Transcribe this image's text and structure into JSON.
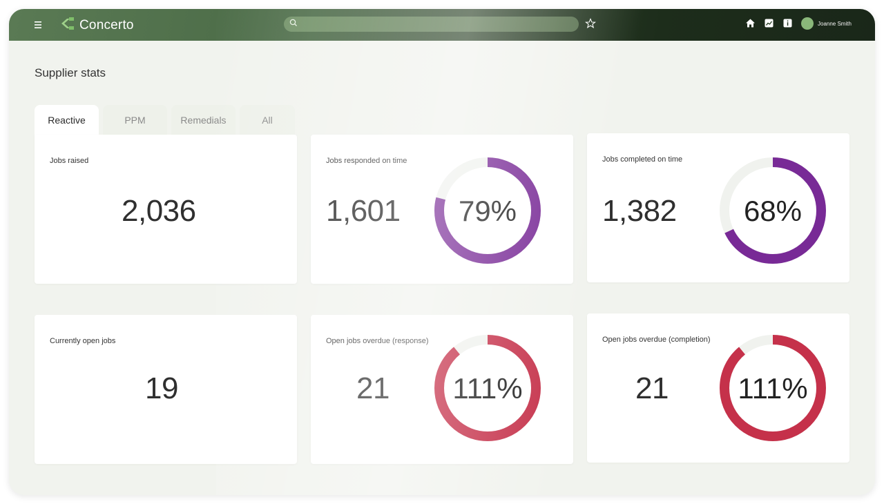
{
  "app": {
    "name": "Concerto",
    "search_placeholder": "",
    "user_name": "Joanne Smith",
    "brand_color": "#4a6a46"
  },
  "page": {
    "title": "Supplier stats"
  },
  "tabs": [
    {
      "label": "Reactive",
      "active": true
    },
    {
      "label": "PPM",
      "active": false
    },
    {
      "label": "Remedials",
      "active": false
    },
    {
      "label": "All",
      "active": false
    }
  ],
  "icons": {
    "menu": "hamburger-menu-icon",
    "logo": "concerto-logo-icon",
    "search": "search-icon",
    "favorite": "star-icon",
    "home": "home-icon",
    "reports": "chart-icon",
    "info": "info-icon"
  },
  "cards": [
    {
      "label": "Jobs raised",
      "value": "2,036"
    },
    {
      "label": "Jobs responded on time",
      "value": "1,601",
      "percent_label": "79%",
      "percent": 79,
      "color": "#782a96"
    },
    {
      "label": "Jobs completed on time",
      "value": "1,382",
      "percent_label": "68%",
      "percent": 68,
      "color": "#782a96"
    },
    {
      "label": "Currently open jobs",
      "value": "19"
    },
    {
      "label": "Open jobs overdue (response)",
      "value": "21",
      "percent_label": "111%",
      "percent": 111,
      "color": "#c5314a"
    },
    {
      "label": "Open jobs overdue (completion)",
      "value": "21",
      "percent_label": "111%",
      "percent": 111,
      "color": "#c5314a"
    }
  ]
}
